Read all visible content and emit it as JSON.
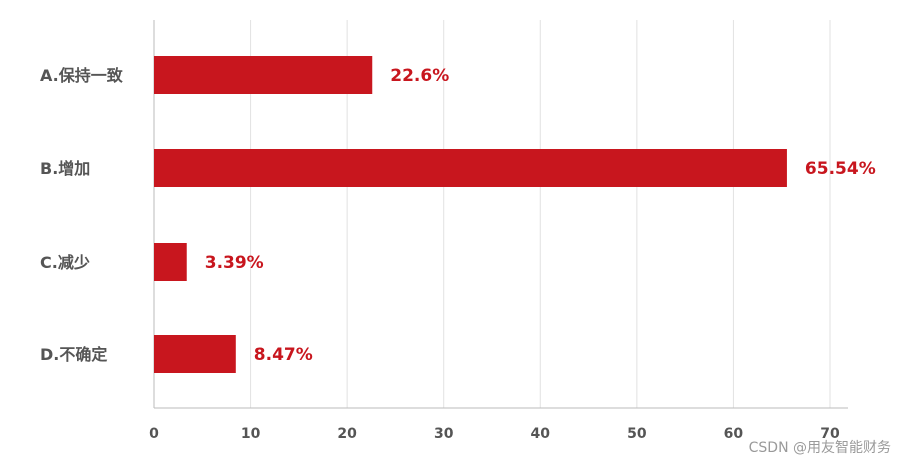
{
  "chart_data": {
    "type": "bar",
    "orientation": "horizontal",
    "categories": [
      "A.保持一致",
      "B.增加",
      "C.减少",
      "D.不确定"
    ],
    "values": [
      22.6,
      65.54,
      3.39,
      8.47
    ],
    "value_labels": [
      "22.6%",
      "65.54%",
      "3.39%",
      "8.47%"
    ],
    "xlim": [
      0,
      70
    ],
    "xticks": [
      0,
      10,
      20,
      30,
      40,
      50,
      60,
      70
    ],
    "grid": true,
    "bar_color": "#c8161e",
    "label_color": "#c8161e",
    "axis_text_color": "#555555"
  },
  "watermark": "CSDN @用友智能财务"
}
